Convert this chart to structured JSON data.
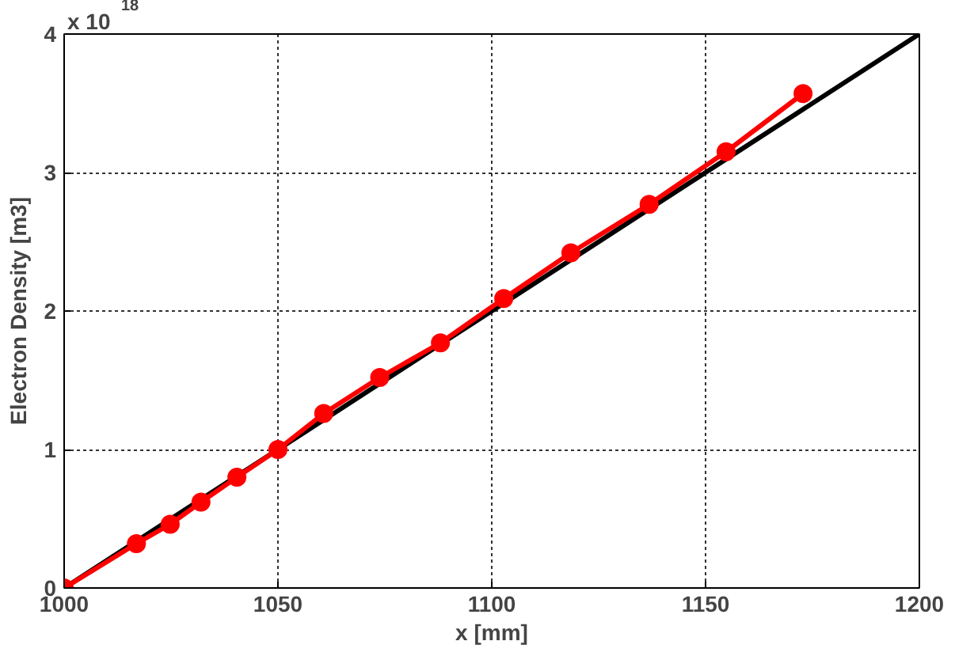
{
  "chart_data": {
    "type": "line",
    "xlabel": "x [mm]",
    "ylabel": "Electron Density [m3]",
    "annotations": [
      "x 10$^{18}$"
    ],
    "xlim": [
      1000,
      1200
    ],
    "ylim": [
      0,
      4
    ],
    "xticks": [
      1000,
      1050,
      1100,
      1150,
      1200
    ],
    "yticks": [
      0,
      1,
      2,
      3,
      4
    ],
    "grid": true,
    "line_style": "solid",
    "series": [
      {
        "color": "#000000",
        "x": [
          1000,
          1200
        ],
        "values": [
          0,
          4
        ],
        "marker": "none"
      },
      {
        "color": "#ff0000",
        "x": [
          1000,
          1016.9,
          1024.8,
          1032,
          1040.4,
          1050,
          1060.7,
          1073.8,
          1088,
          1102.8,
          1118.5,
          1136.8,
          1154.8,
          1172.8
        ],
        "values": [
          0,
          0.32,
          0.46,
          0.62,
          0.8,
          1.0,
          1.26,
          1.52,
          1.77,
          2.09,
          2.42,
          2.77,
          3.15,
          3.57
        ],
        "marker": "circle"
      }
    ]
  }
}
